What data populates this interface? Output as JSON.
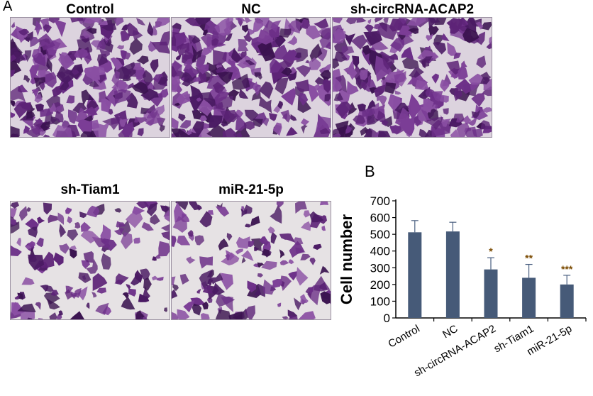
{
  "panel_labels": {
    "a": "A",
    "b": "B"
  },
  "images": [
    {
      "title": "Control",
      "density": "high",
      "cell_color": "#4a1a63"
    },
    {
      "title": "NC",
      "density": "high",
      "cell_color": "#4a1a63"
    },
    {
      "title": "sh-circRNA-ACAP2",
      "density": "high",
      "cell_color": "#4a1a63"
    },
    {
      "title": "sh-Tiam1",
      "density": "low",
      "cell_color": "#4a1a63"
    },
    {
      "title": "miR-21-5p",
      "density": "low",
      "cell_color": "#4a1a63"
    }
  ],
  "chart_data": {
    "type": "bar",
    "categories": [
      "Control",
      "NC",
      "sh-circRNA-ACAP2",
      "sh-Tiam1",
      "miR-21-5p"
    ],
    "values": [
      512,
      517,
      290,
      240,
      200
    ],
    "errors": [
      70,
      55,
      70,
      80,
      55
    ],
    "significance": [
      "",
      "",
      "*",
      "**",
      "***"
    ],
    "significance_color": "#7a4a00",
    "ylabel": "Cell number",
    "xlabel": "",
    "ylim": [
      0,
      700
    ],
    "yticks": [
      0,
      100,
      200,
      300,
      400,
      500,
      600,
      700
    ],
    "bar_color": "#465a78",
    "grid": false,
    "legend": "none"
  }
}
